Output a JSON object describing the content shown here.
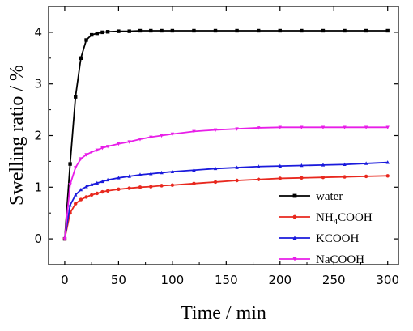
{
  "chart_data": {
    "type": "line",
    "title": "",
    "xlabel": "Time / min",
    "ylabel": "Swelling ratio / %",
    "xlim": [
      -15,
      310
    ],
    "ylim": [
      -0.5,
      4.5
    ],
    "xticks": [
      0,
      50,
      100,
      150,
      200,
      250,
      300
    ],
    "yticks": [
      0,
      1,
      2,
      3,
      4
    ],
    "grid": false,
    "legend_position": "bottom-right",
    "x": [
      0,
      5,
      10,
      15,
      20,
      25,
      30,
      35,
      40,
      50,
      60,
      70,
      80,
      90,
      100,
      120,
      140,
      160,
      180,
      200,
      220,
      240,
      260,
      280,
      300
    ],
    "series": [
      {
        "name": "water",
        "color": "#000000",
        "marker": "square",
        "values": [
          0,
          1.45,
          2.75,
          3.5,
          3.85,
          3.95,
          3.98,
          4.0,
          4.01,
          4.02,
          4.02,
          4.03,
          4.03,
          4.03,
          4.03,
          4.03,
          4.03,
          4.03,
          4.03,
          4.03,
          4.03,
          4.03,
          4.03,
          4.03,
          4.03
        ]
      },
      {
        "name": "NH4COOH",
        "name_parts": [
          "NH",
          "4",
          "COOH"
        ],
        "color": "#e8281e",
        "marker": "circle",
        "values": [
          0,
          0.5,
          0.68,
          0.76,
          0.81,
          0.85,
          0.88,
          0.91,
          0.93,
          0.96,
          0.98,
          1.0,
          1.01,
          1.03,
          1.04,
          1.07,
          1.1,
          1.13,
          1.15,
          1.17,
          1.18,
          1.19,
          1.2,
          1.21,
          1.22
        ]
      },
      {
        "name": "KCOOH",
        "color": "#1a1adc",
        "marker": "triangle-up",
        "values": [
          0,
          0.65,
          0.85,
          0.95,
          1.01,
          1.05,
          1.08,
          1.11,
          1.14,
          1.18,
          1.21,
          1.24,
          1.26,
          1.28,
          1.3,
          1.33,
          1.36,
          1.38,
          1.4,
          1.41,
          1.42,
          1.43,
          1.44,
          1.46,
          1.48
        ]
      },
      {
        "name": "NaCOOH",
        "color": "#e81ee8",
        "marker": "triangle-down",
        "values": [
          0,
          1.05,
          1.38,
          1.55,
          1.63,
          1.68,
          1.72,
          1.76,
          1.79,
          1.84,
          1.88,
          1.93,
          1.97,
          2.0,
          2.03,
          2.08,
          2.11,
          2.13,
          2.15,
          2.16,
          2.16,
          2.16,
          2.16,
          2.16,
          2.16
        ]
      }
    ]
  }
}
